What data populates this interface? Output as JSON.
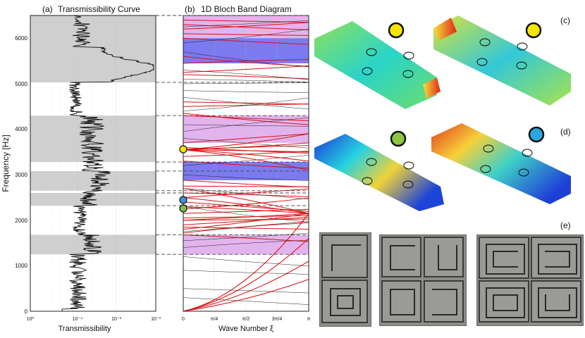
{
  "figure": {
    "panel_a_label": "(a)",
    "panel_a_title": "Transmissibility Curve",
    "panel_b_label": "(b)",
    "panel_b_title": "1D Bloch Band Diagram",
    "panel_c_label": "(c)",
    "panel_d_label": "(d)",
    "panel_e_label": "(e)",
    "y_axis_label": "Frequency [Hz]",
    "x_axis_a_label": "Transmissibility",
    "x_axis_b_label": "Wave Number ξ",
    "y_ticks": [
      "0",
      "1000",
      "2000",
      "3000",
      "4000",
      "5000",
      "6000"
    ],
    "x_ticks_a": [
      "10⁰",
      "10⁻⁴",
      "10⁻²",
      "10⁻³"
    ],
    "x_ticks_b": [
      "0",
      "π/4",
      "π/2",
      "3π/4",
      "π"
    ],
    "mode_marker_colors": {
      "yellow": "#f5e500",
      "green": "#8dc63f",
      "blue": "#2aa9e0"
    }
  },
  "chart_data": [
    {
      "type": "line",
      "panel": "a",
      "title": "Transmissibility Curve",
      "xlabel": "Transmissibility",
      "ylabel": "Frequency [Hz]",
      "ylim": [
        0,
        6500
      ],
      "x_scale": "log",
      "stop_bands_hz": [
        [
          1250,
          1680
        ],
        [
          2320,
          2600
        ],
        [
          2650,
          3080
        ],
        [
          3280,
          4300
        ],
        [
          5030,
          6500
        ]
      ],
      "grid": true
    },
    {
      "type": "line",
      "panel": "b",
      "title": "1D Bloch Band Diagram",
      "xlabel": "Wave Number ξ",
      "ylabel": "Frequency [Hz]",
      "xlim": [
        0,
        3.1416
      ],
      "ylim": [
        0,
        6500
      ],
      "band_gaps_hz": [
        [
          1250,
          1680
        ],
        [
          2880,
          3280
        ],
        [
          3700,
          4300
        ],
        [
          5450,
          6500
        ]
      ],
      "mode_points": [
        {
          "color": "yellow",
          "frequency": 3550,
          "wavenumber": 0
        },
        {
          "color": "blue",
          "frequency": 2400,
          "wavenumber": 0
        },
        {
          "color": "green",
          "frequency": 2250,
          "wavenumber": 0
        }
      ]
    }
  ]
}
